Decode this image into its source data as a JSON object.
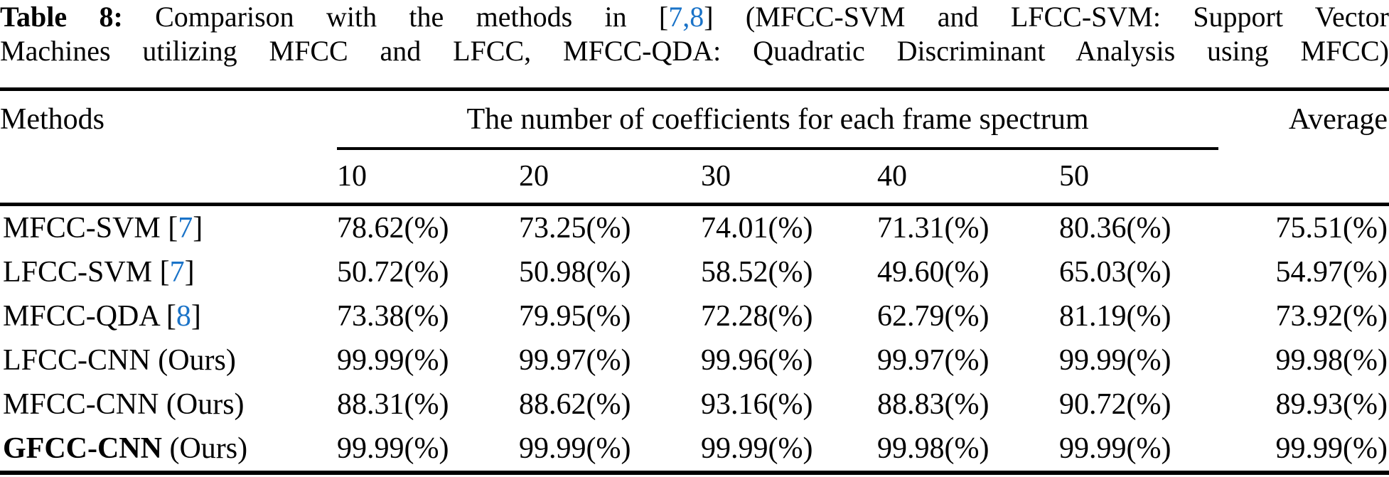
{
  "page": {
    "background": "#ffffff",
    "text_color": "#000000",
    "link_color": "#1a73c8"
  },
  "caption": {
    "label": "Table 8:",
    "line1_pre": " Comparison with the methods in [",
    "refs": "7,8",
    "line1_post": "] (MFCC-SVM and LFCC-SVM: Support Vector",
    "line2": "Machines utilizing MFCC and LFCC, MFCC-QDA: Quadratic Discriminant Analysis using MFCC)"
  },
  "table": {
    "col_methods": "Methods",
    "col_span": "The number of coefficients for each frame spectrum",
    "col_average": "Average",
    "subheaders": [
      "10",
      "20",
      "30",
      "40",
      "50"
    ],
    "ref_open": "[",
    "ref_close": "]",
    "ours_label": "(Ours)",
    "value_suffix": "(%)",
    "rows": [
      {
        "method": "MFCC-SVM",
        "bold": false,
        "ref": "7",
        "ours": false,
        "values": [
          "78.62",
          "73.25",
          "74.01",
          "71.31",
          "80.36"
        ],
        "average": "75.51"
      },
      {
        "method": "LFCC-SVM",
        "bold": false,
        "ref": "7",
        "ours": false,
        "values": [
          "50.72",
          "50.98",
          "58.52",
          "49.60",
          "65.03"
        ],
        "average": "54.97"
      },
      {
        "method": "MFCC-QDA",
        "bold": false,
        "ref": "8",
        "ours": false,
        "values": [
          "73.38",
          "79.95",
          "72.28",
          "62.79",
          "81.19"
        ],
        "average": "73.92"
      },
      {
        "method": "LFCC-CNN",
        "bold": false,
        "ref": null,
        "ours": true,
        "values": [
          "99.99",
          "99.97",
          "99.96",
          "99.97",
          "99.99"
        ],
        "average": "99.98"
      },
      {
        "method": "MFCC-CNN",
        "bold": false,
        "ref": null,
        "ours": true,
        "values": [
          "88.31",
          "88.62",
          "93.16",
          "88.83",
          "90.72"
        ],
        "average": "89.93"
      },
      {
        "method": "GFCC-CNN",
        "bold": true,
        "ref": null,
        "ours": true,
        "values": [
          "99.99",
          "99.99",
          "99.99",
          "99.98",
          "99.99"
        ],
        "average": "99.99"
      }
    ]
  }
}
